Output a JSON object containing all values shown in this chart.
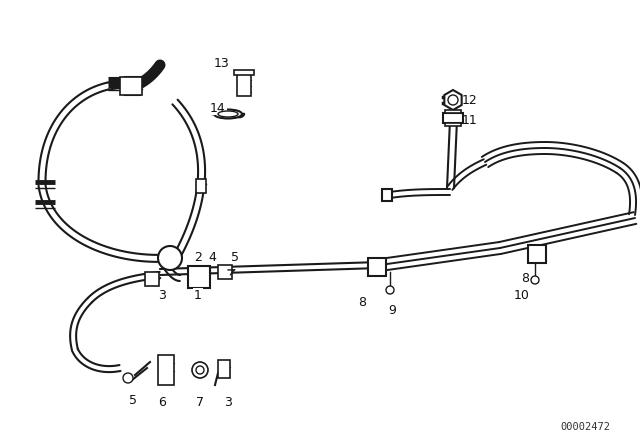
{
  "bg_color": "#ffffff",
  "line_color": "#1a1a1a",
  "diagram_id": "00002472",
  "label_fontsize": 9,
  "id_fontsize": 7.5
}
